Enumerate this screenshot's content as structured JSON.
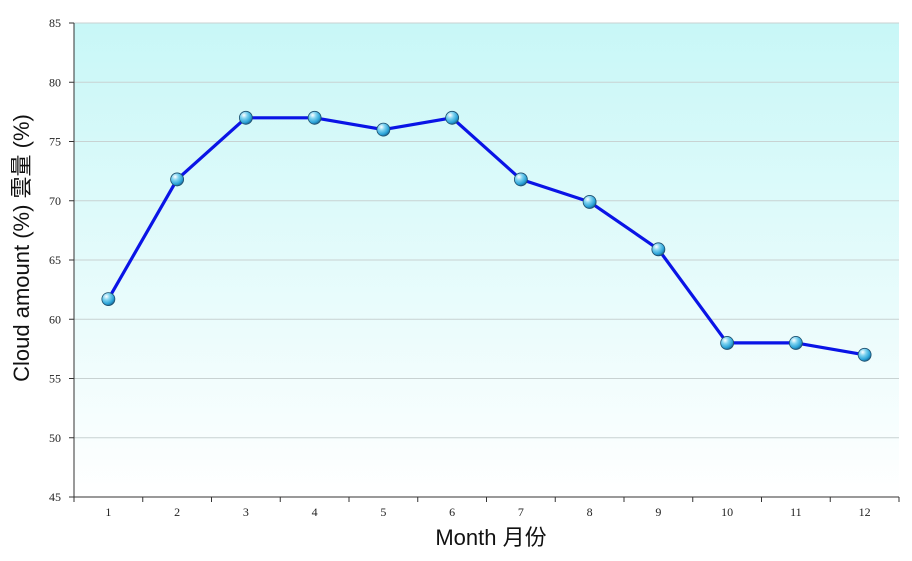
{
  "chart_data": {
    "type": "line",
    "title": "",
    "xlabel": "Month 月份",
    "ylabel": "Cloud amount (%)  雲量 (%)",
    "categories": [
      "1",
      "2",
      "3",
      "4",
      "5",
      "6",
      "7",
      "8",
      "9",
      "10",
      "11",
      "12"
    ],
    "series": [
      {
        "values": [
          61.7,
          71.8,
          77,
          77,
          76,
          77,
          71.8,
          69.9,
          65.9,
          58,
          58,
          57
        ]
      }
    ],
    "ylim": [
      45,
      85
    ],
    "yticks": [
      "45",
      "50",
      "55",
      "60",
      "65",
      "70",
      "75",
      "80",
      "85"
    ],
    "grid": true,
    "legend": "none",
    "colors": {
      "line": "#0a14e6",
      "plot_top": "#c8f7f7",
      "plot_bottom": "#ffffff",
      "grid": "#c8d2d2",
      "marker_fill": "#2aa3d8"
    }
  }
}
